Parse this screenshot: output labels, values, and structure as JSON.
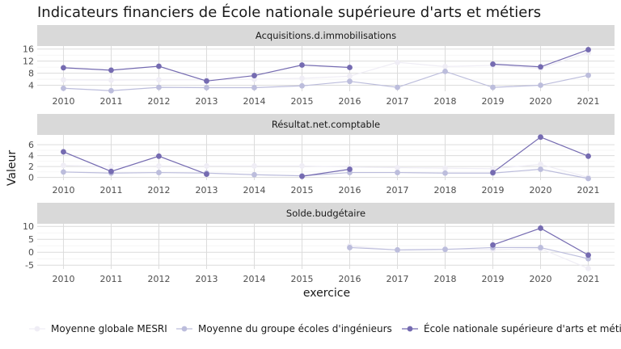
{
  "chart_data": {
    "type": "line",
    "title": "Indicateurs financiers de École nationale supérieure d'arts et métiers",
    "xlabel": "exercice",
    "ylabel": "Valeur",
    "x": [
      2010,
      2011,
      2012,
      2013,
      2014,
      2015,
      2016,
      2017,
      2018,
      2019,
      2020,
      2021
    ],
    "legend_position": "bottom",
    "series_styles": [
      {
        "name": "Moyenne globale MESRI",
        "color": "#efedf5"
      },
      {
        "name": "Moyenne du groupe écoles d'ingénieurs",
        "color": "#bcbddc"
      },
      {
        "name": "École nationale supérieure d'arts et métiers",
        "color": "#756bb1"
      }
    ],
    "facets": [
      {
        "strip": "Acquisitions.d.immobilisations",
        "ylim": [
          2,
          17
        ],
        "yticks": [
          4,
          8,
          12,
          16
        ],
        "series": [
          {
            "name": "Moyenne globale MESRI",
            "values": [
              5.8,
              5.7,
              5.8,
              5.8,
              6.0,
              6.3,
              7.0,
              11.6,
              10.2,
              10.6,
              9.6,
              14.8
            ]
          },
          {
            "name": "Moyenne du groupe écoles d'ingénieurs",
            "values": [
              3.0,
              2.2,
              3.3,
              3.2,
              3.2,
              3.8,
              5.3,
              3.3,
              8.6,
              3.3,
              4.0,
              7.3
            ]
          },
          {
            "name": "École nationale supérieure d'arts et métiers",
            "values": [
              9.8,
              9.0,
              10.3,
              5.4,
              7.2,
              10.7,
              9.9,
              null,
              null,
              11.0,
              10.1,
              15.8
            ]
          }
        ]
      },
      {
        "strip": "Résultat.net.comptable",
        "ylim": [
          -0.5,
          7.8
        ],
        "yticks": [
          0,
          2,
          4,
          6
        ],
        "series": [
          {
            "name": "Moyenne globale MESRI",
            "values": [
              2.2,
              2.0,
              2.1,
              2.1,
              2.1,
              2.1,
              1.9,
              1.8,
              1.7,
              1.6,
              2.4,
              0.0
            ]
          },
          {
            "name": "Moyenne du groupe écoles d'ingénieurs",
            "values": [
              1.0,
              0.8,
              0.9,
              0.8,
              0.5,
              0.3,
              0.9,
              0.9,
              0.8,
              0.8,
              1.5,
              -0.2
            ]
          },
          {
            "name": "École nationale supérieure d'arts et métiers",
            "values": [
              4.7,
              1.1,
              3.9,
              0.6,
              null,
              0.2,
              1.5,
              null,
              null,
              0.9,
              7.4,
              3.9
            ]
          }
        ]
      },
      {
        "strip": "Solde.budgétaire",
        "ylim": [
          -6.5,
          11
        ],
        "yticks": [
          -5,
          0,
          5,
          10
        ],
        "series": [
          {
            "name": "Moyenne globale MESRI",
            "values": [
              null,
              null,
              null,
              null,
              null,
              null,
              2.4,
              0.8,
              1.2,
              1.0,
              1.4,
              -6.3
            ]
          },
          {
            "name": "Moyenne du groupe écoles d'ingénieurs",
            "values": [
              null,
              null,
              null,
              null,
              null,
              null,
              1.8,
              0.9,
              1.1,
              1.8,
              1.8,
              -2.5
            ]
          },
          {
            "name": "École nationale supérieure d'arts et métiers",
            "values": [
              null,
              null,
              null,
              null,
              null,
              null,
              null,
              null,
              null,
              2.8,
              9.3,
              -1.1
            ]
          }
        ]
      }
    ]
  }
}
